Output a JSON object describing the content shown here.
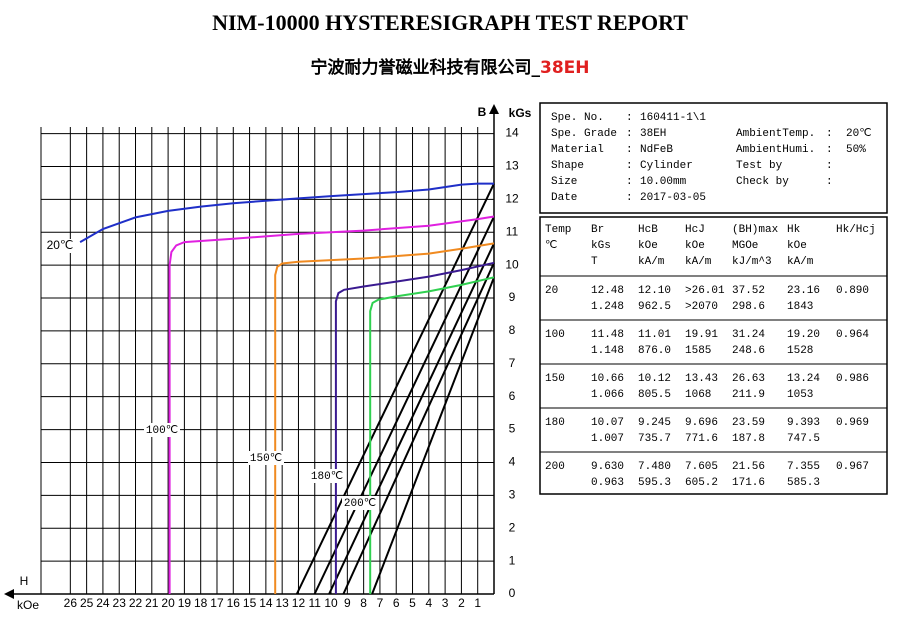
{
  "header": {
    "title": "NIM-10000 HYSTERESIGRAPH TEST REPORT",
    "company": "宁波耐力誉磁业科技有限公司_",
    "grade": "38EH"
  },
  "chart_data": {
    "type": "line",
    "y_label": "B",
    "y_unit": "kGs",
    "x_label": "H",
    "x_unit": "kOe",
    "xlim": [
      27.8,
      0
    ],
    "ylim": [
      0,
      14.2
    ],
    "xticks": [
      26,
      25,
      24,
      23,
      22,
      21,
      20,
      19,
      18,
      17,
      16,
      15,
      14,
      13,
      12,
      11,
      10,
      9,
      8,
      7,
      6,
      5,
      4,
      3,
      2,
      1
    ],
    "yticks": [
      0,
      1,
      2,
      3,
      4,
      5,
      6,
      7,
      8,
      9,
      10,
      11,
      12,
      13,
      14
    ],
    "grid": true,
    "series": [
      {
        "name": "20℃",
        "color": "#1f2fc8",
        "x": [
          25.4,
          24,
          22,
          20,
          18,
          16,
          14,
          12,
          10,
          8,
          6,
          4,
          2,
          1,
          0
        ],
        "values": [
          10.7,
          11.1,
          11.45,
          11.65,
          11.78,
          11.88,
          11.96,
          12.03,
          12.1,
          12.16,
          12.22,
          12.3,
          12.45,
          12.48,
          12.48
        ]
      },
      {
        "name": "100℃",
        "color": "#e020e0",
        "x": [
          19.91,
          19.91,
          19.8,
          19.5,
          19,
          16,
          12,
          8,
          4,
          1,
          0
        ],
        "values": [
          0,
          10.0,
          10.4,
          10.6,
          10.7,
          10.8,
          10.95,
          11.05,
          11.2,
          11.4,
          11.48
        ]
      },
      {
        "name": "150℃",
        "color": "#f08a20",
        "x": [
          13.43,
          13.43,
          13.3,
          13,
          12,
          8,
          4,
          2,
          0
        ],
        "values": [
          0,
          9.7,
          9.95,
          10.05,
          10.1,
          10.2,
          10.35,
          10.5,
          10.66
        ]
      },
      {
        "name": "180℃",
        "color": "#3a1a90",
        "x": [
          9.7,
          9.7,
          9.55,
          9.2,
          8,
          6,
          4,
          2,
          0
        ],
        "values": [
          0,
          8.9,
          9.15,
          9.25,
          9.35,
          9.5,
          9.65,
          9.85,
          10.07
        ]
      },
      {
        "name": "200℃",
        "color": "#30d050",
        "x": [
          7.6,
          7.6,
          7.45,
          7.1,
          6,
          4,
          2,
          0
        ],
        "values": [
          0,
          8.6,
          8.85,
          8.95,
          9.05,
          9.2,
          9.4,
          9.63
        ]
      }
    ],
    "normal_curves": [
      {
        "color": "#000000",
        "x": [
          12.1,
          0
        ],
        "values": [
          0,
          12.48
        ]
      },
      {
        "color": "#000000",
        "x": [
          11.01,
          0
        ],
        "values": [
          0,
          11.48
        ]
      },
      {
        "color": "#000000",
        "x": [
          10.12,
          0
        ],
        "values": [
          0,
          10.66
        ]
      },
      {
        "color": "#000000",
        "x": [
          9.245,
          0
        ],
        "values": [
          0,
          10.07
        ]
      },
      {
        "color": "#000000",
        "x": [
          7.48,
          0
        ],
        "values": [
          0,
          9.63
        ]
      }
    ]
  },
  "info": {
    "separator": ":",
    "left": [
      {
        "label": "Spe. No.",
        "value": "160411-1\\1"
      },
      {
        "label": "Spe. Grade",
        "value": "38EH"
      },
      {
        "label": "Material",
        "value": "NdFeB"
      },
      {
        "label": "Shape",
        "value": "Cylinder"
      },
      {
        "label": "Size",
        "value": "10.00mm"
      },
      {
        "label": "Date",
        "value": "2017-03-05"
      }
    ],
    "right": [
      {
        "label": "AmbientTemp.",
        "value": "20℃"
      },
      {
        "label": "AmbientHumi.",
        "value": "50%"
      },
      {
        "label": "Test by"
      },
      {
        "label": "Check by"
      }
    ]
  },
  "table": {
    "columns": [
      {
        "lines": [
          "Temp",
          "℃"
        ]
      },
      {
        "lines": [
          "Br",
          "kGs",
          "T"
        ]
      },
      {
        "lines": [
          "HcB",
          "kOe",
          "kA/m"
        ]
      },
      {
        "lines": [
          "HcJ",
          "kOe",
          "kA/m"
        ]
      },
      {
        "lines": [
          "(BH)max",
          "MGOe",
          "kJ/m^3"
        ]
      },
      {
        "lines": [
          "Hk",
          "kOe",
          "kA/m"
        ]
      },
      {
        "lines": [
          "Hk/Hcj"
        ]
      }
    ],
    "rows": [
      {
        "temp": "20",
        "lines": [
          [
            "12.48",
            "12.10",
            ">26.01",
            "37.52",
            "23.16",
            "0.890"
          ],
          [
            "1.248",
            "962.5",
            ">2070",
            "298.6",
            "1843"
          ]
        ]
      },
      {
        "temp": "100",
        "lines": [
          [
            "11.48",
            "11.01",
            "19.91",
            "31.24",
            "19.20",
            "0.964"
          ],
          [
            "1.148",
            "876.0",
            "1585",
            "248.6",
            "1528"
          ]
        ]
      },
      {
        "temp": "150",
        "lines": [
          [
            "10.66",
            "10.12",
            "13.43",
            "26.63",
            "13.24",
            "0.986"
          ],
          [
            "1.066",
            "805.5",
            "1068",
            "211.9",
            "1053"
          ]
        ]
      },
      {
        "temp": "180",
        "lines": [
          [
            "10.07",
            "9.245",
            "9.696",
            "23.59",
            "9.393",
            "0.969"
          ],
          [
            "1.007",
            "735.7",
            "771.6",
            "187.8",
            "747.5"
          ]
        ]
      },
      {
        "temp": "200",
        "lines": [
          [
            "9.630",
            "7.480",
            "7.605",
            "21.56",
            "7.355",
            "0.967"
          ],
          [
            "0.963",
            "595.3",
            "605.2",
            "171.6",
            "585.3"
          ]
        ]
      }
    ]
  }
}
